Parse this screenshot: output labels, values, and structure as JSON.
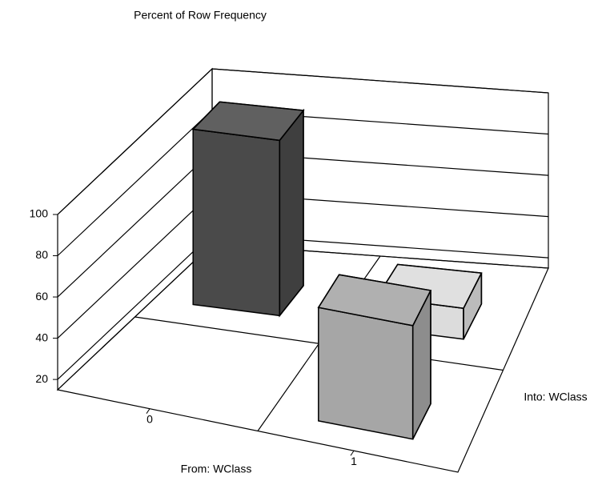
{
  "chart_data": {
    "type": "bar3d",
    "title": "Percent of Row Frequency",
    "x_label": "From: WClass",
    "z_label": "Into: WClass",
    "categories": [
      "0",
      "1"
    ],
    "series": [
      {
        "colors": [
          "#4a4a4a",
          "#dcdcdc"
        ],
        "values": [
          100,
          30
        ]
      },
      {
        "colors": [
          "#a6a6a6",
          "#a6a6a6"
        ],
        "values": [
          0,
          70
        ]
      }
    ],
    "ylim": [
      15,
      100
    ],
    "yticks": [
      20,
      40,
      60,
      80,
      100
    ],
    "grid": true
  }
}
